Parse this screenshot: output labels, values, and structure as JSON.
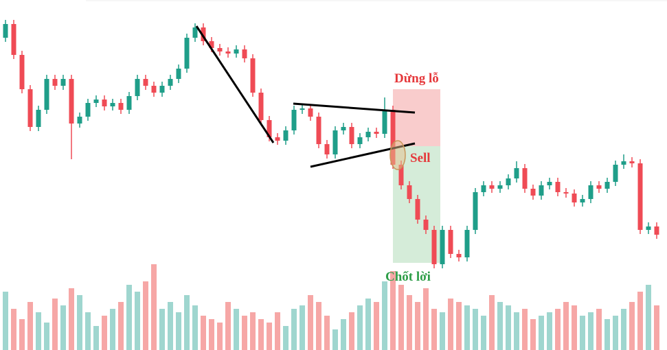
{
  "chart_data": {
    "type": "candlestick",
    "ylim": [
      0,
      510
    ],
    "up_color": "#1f9e89",
    "down_color": "#ef4b55",
    "volume_up_color": "#9fd6cf",
    "volume_down_color": "#f6a7a6",
    "open": [
      455,
      475,
      430,
      380,
      325,
      350,
      395,
      385,
      395,
      330,
      340,
      360,
      365,
      355,
      360,
      350,
      370,
      395,
      385,
      375,
      385,
      395,
      410,
      455,
      470,
      450,
      440,
      435,
      432,
      438,
      425,
      375,
      335,
      310,
      305,
      320,
      350,
      352,
      340,
      300,
      285,
      320,
      325,
      300,
      310,
      318,
      315,
      350,
      270,
      240,
      220,
      190,
      175,
      125,
      175,
      140,
      135,
      175,
      230,
      240,
      235,
      240,
      250,
      265,
      235,
      225,
      240,
      245,
      230,
      228,
      215,
      220,
      240,
      235,
      245,
      270,
      275,
      272,
      175,
      180
    ],
    "close": [
      475,
      430,
      380,
      325,
      350,
      395,
      385,
      395,
      330,
      340,
      360,
      365,
      355,
      360,
      350,
      370,
      395,
      385,
      375,
      385,
      395,
      410,
      455,
      470,
      450,
      440,
      435,
      432,
      438,
      425,
      375,
      335,
      310,
      305,
      320,
      350,
      352,
      340,
      300,
      285,
      320,
      325,
      300,
      310,
      318,
      315,
      350,
      270,
      240,
      220,
      190,
      175,
      125,
      175,
      140,
      135,
      175,
      230,
      240,
      235,
      240,
      250,
      265,
      235,
      225,
      240,
      245,
      230,
      228,
      215,
      220,
      240,
      235,
      245,
      270,
      275,
      272,
      175,
      180,
      168
    ],
    "high": [
      481,
      481,
      436,
      386,
      356,
      401,
      401,
      401,
      401,
      346,
      366,
      371,
      371,
      366,
      366,
      376,
      401,
      401,
      391,
      391,
      401,
      416,
      461,
      476,
      476,
      456,
      446,
      441,
      444,
      444,
      431,
      381,
      341,
      316,
      326,
      356,
      358,
      358,
      346,
      306,
      326,
      331,
      331,
      316,
      324,
      324,
      368,
      356,
      276,
      246,
      226,
      196,
      181,
      181,
      181,
      146,
      181,
      236,
      246,
      246,
      246,
      256,
      275,
      271,
      241,
      246,
      251,
      251,
      236,
      234,
      226,
      246,
      246,
      251,
      276,
      285,
      281,
      278,
      186,
      186
    ],
    "low": [
      449,
      424,
      374,
      319,
      319,
      344,
      379,
      379,
      278,
      324,
      334,
      354,
      349,
      349,
      344,
      344,
      364,
      379,
      369,
      369,
      379,
      389,
      404,
      449,
      444,
      434,
      429,
      426,
      426,
      419,
      369,
      329,
      304,
      299,
      299,
      314,
      344,
      334,
      294,
      279,
      279,
      314,
      294,
      294,
      304,
      309,
      309,
      264,
      234,
      214,
      184,
      169,
      119,
      119,
      134,
      129,
      129,
      169,
      224,
      229,
      229,
      234,
      244,
      229,
      219,
      219,
      234,
      224,
      222,
      209,
      209,
      214,
      229,
      229,
      239,
      264,
      266,
      169,
      169,
      162
    ],
    "volume": [
      85,
      60,
      45,
      70,
      55,
      40,
      75,
      65,
      90,
      80,
      55,
      35,
      50,
      60,
      70,
      95,
      85,
      100,
      125,
      60,
      70,
      55,
      80,
      65,
      50,
      45,
      40,
      70,
      60,
      50,
      55,
      45,
      40,
      55,
      35,
      60,
      65,
      80,
      70,
      50,
      30,
      45,
      55,
      65,
      75,
      70,
      100,
      115,
      95,
      80,
      70,
      90,
      60,
      55,
      75,
      70,
      65,
      60,
      50,
      80,
      70,
      65,
      55,
      60,
      45,
      50,
      55,
      60,
      70,
      65,
      50,
      55,
      60,
      45,
      50,
      60,
      70,
      85,
      95,
      65
    ],
    "annotations": [
      "Dừng lỗ",
      "Sell",
      "Chốt lời"
    ]
  }
}
